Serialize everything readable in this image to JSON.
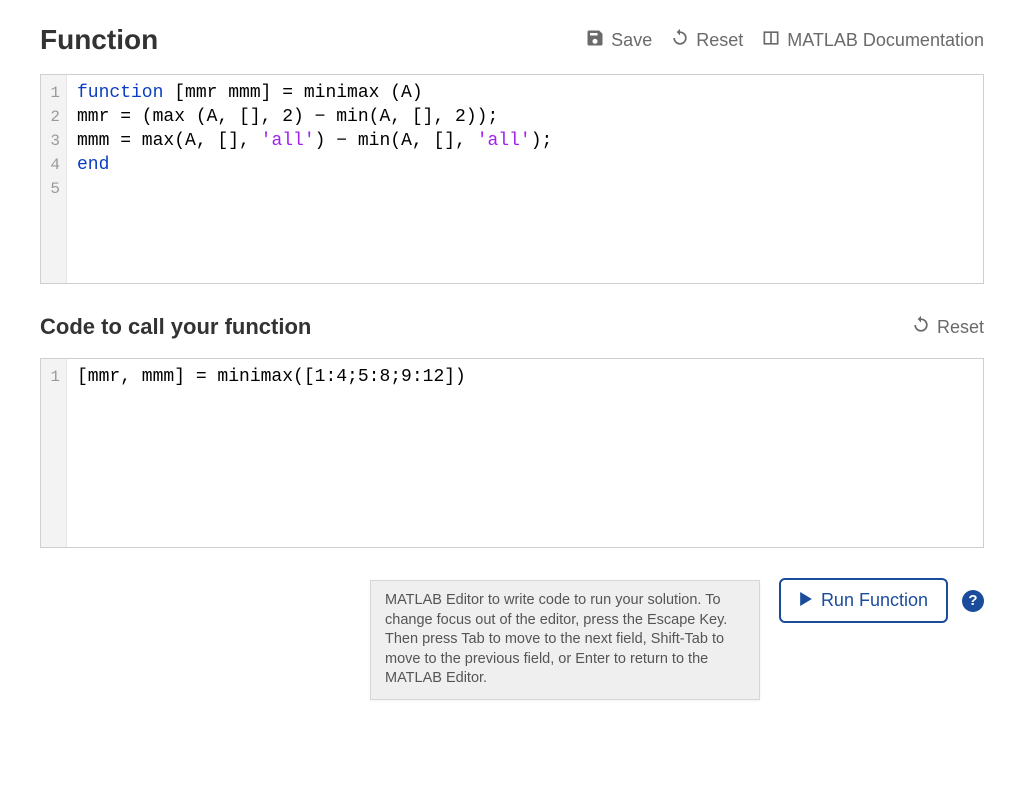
{
  "sections": {
    "function": {
      "title": "Function",
      "toolbar": {
        "save_label": "Save",
        "reset_label": "Reset",
        "docs_label": "MATLAB Documentation"
      },
      "line_numbers": [
        "1",
        "2",
        "3",
        "4",
        "5"
      ],
      "code_lines": [
        [
          {
            "cls": "tok-keyword",
            "text": "function"
          },
          {
            "cls": "tok-plain",
            "text": " [mmr mmm] = minimax (A)"
          }
        ],
        [
          {
            "cls": "tok-plain",
            "text": "mmr = (max (A, [], 2) − min(A, [], 2));"
          }
        ],
        [
          {
            "cls": "tok-plain",
            "text": "mmm = max(A, [], "
          },
          {
            "cls": "tok-string",
            "text": "'all'"
          },
          {
            "cls": "tok-plain",
            "text": ") − min(A, [], "
          },
          {
            "cls": "tok-string",
            "text": "'all'"
          },
          {
            "cls": "tok-plain",
            "text": ");"
          }
        ],
        [
          {
            "cls": "tok-keyword",
            "text": "end"
          }
        ],
        [
          {
            "cls": "tok-plain",
            "text": ""
          }
        ]
      ]
    },
    "caller": {
      "title": "Code to call your function",
      "toolbar": {
        "reset_label": "Reset"
      },
      "line_numbers": [
        "1"
      ],
      "code_lines": [
        [
          {
            "cls": "tok-plain",
            "text": "[mmr, mmm] = minimax([1:4;5:8;9:12])"
          }
        ]
      ]
    }
  },
  "run_button_label": "Run Function",
  "help_glyph": "?",
  "tooltip_text": "MATLAB Editor to write code to run your solution. To change focus out of the editor, press the Escape Key. Then press Tab to move to the next field, Shift-Tab to move to the previous field, or Enter to return to the MATLAB Editor.",
  "colors": {
    "keyword": "#0a3ec2",
    "string": "#a020f0",
    "text": "#000000",
    "toolbar_text": "#6a6a6a",
    "border": "#cfcfcf",
    "gutter_bg": "#f3f3f3",
    "gutter_text": "#9a9a9a",
    "accent": "#1b4c9c",
    "tooltip_bg": "#efefef",
    "tooltip_text": "#555555"
  }
}
